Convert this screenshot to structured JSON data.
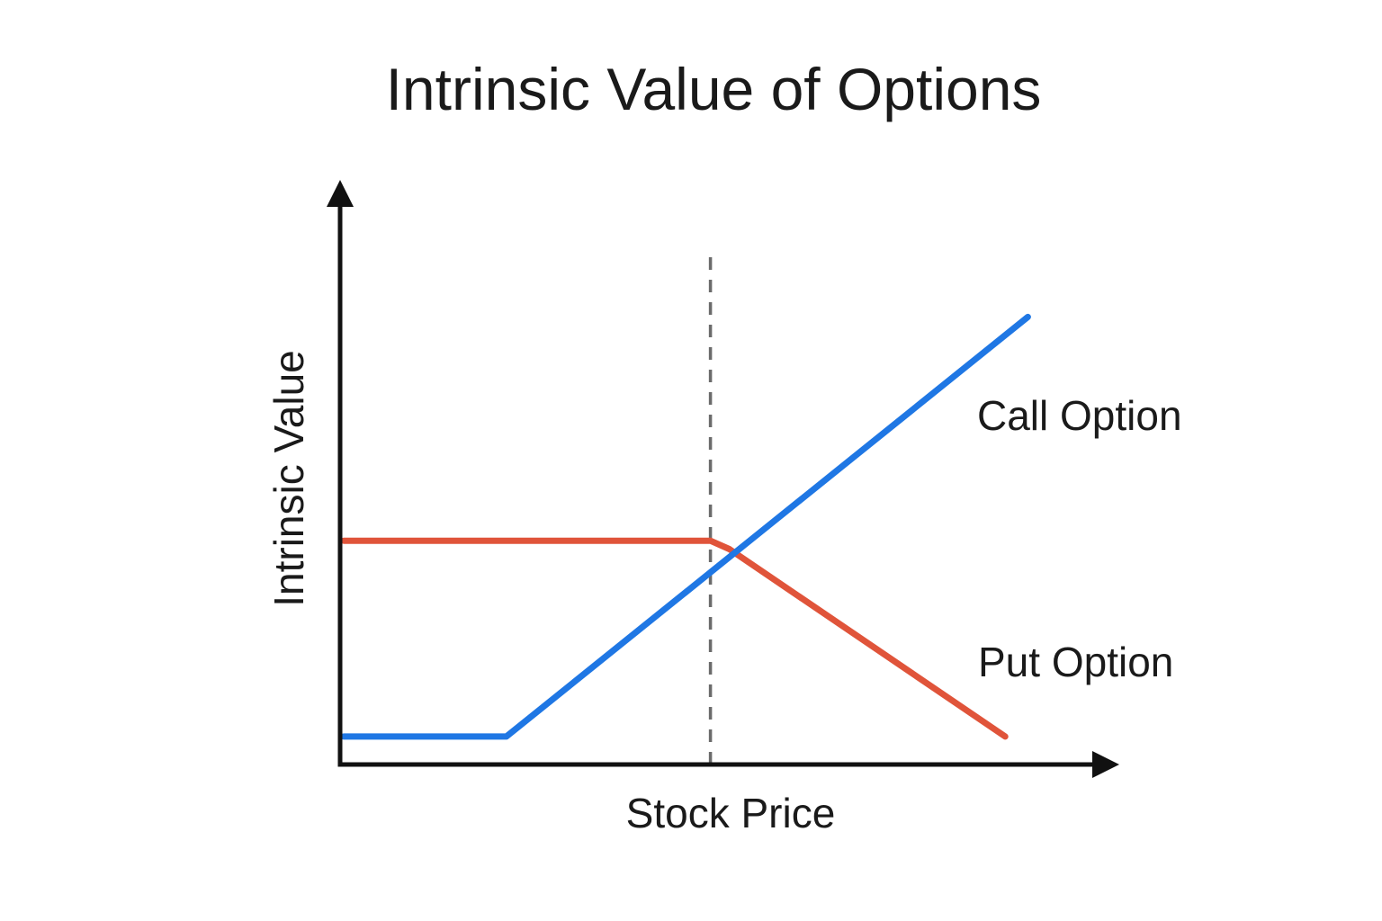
{
  "chart_data": {
    "type": "line",
    "title": "Intrinsic Value of Options",
    "xlabel": "Stock Price",
    "ylabel": "Intrinsic Value",
    "xlim": [
      0,
      100
    ],
    "ylim": [
      0,
      100
    ],
    "grid": false,
    "legend": "none",
    "x_ticks": [],
    "y_ticks": [],
    "strike_marker": {
      "x": 49,
      "style": "dashed",
      "color": "#6b6b6b"
    },
    "series": [
      {
        "name": "Call Option",
        "color": "#1f77e4",
        "points": [
          {
            "x": 0.5,
            "y": 5
          },
          {
            "x": 22,
            "y": 5
          },
          {
            "x": 91,
            "y": 80
          }
        ]
      },
      {
        "name": "Put Option",
        "color": "#e0543a",
        "points": [
          {
            "x": 0.5,
            "y": 40
          },
          {
            "x": 49,
            "y": 40
          },
          {
            "x": 51.5,
            "y": 38.5
          },
          {
            "x": 88,
            "y": 5
          }
        ]
      }
    ]
  }
}
